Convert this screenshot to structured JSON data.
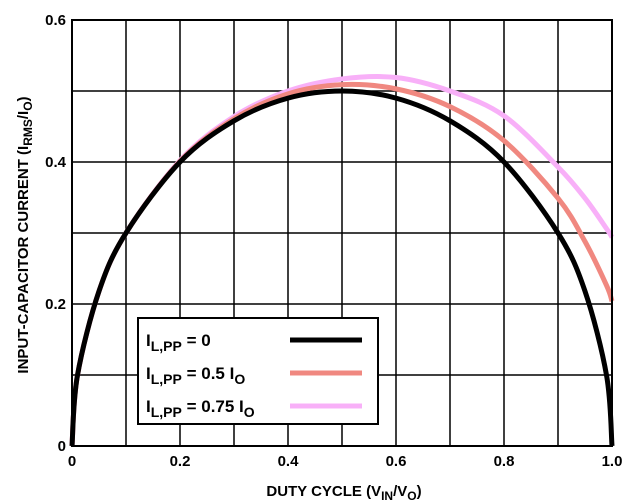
{
  "chart_data": {
    "type": "line",
    "xlabel": {
      "main": "DUTY CYCLE (V",
      "sub1": "IN",
      "mid": "/V",
      "sub2": "O",
      "end": ")"
    },
    "ylabel": {
      "main": "INPUT-CAPACITOR CURRENT (I",
      "sub1": "RMS",
      "mid": "/I",
      "sub2": "O",
      "end": ")"
    },
    "xlim": [
      0,
      1.0
    ],
    "ylim": [
      0,
      0.6
    ],
    "grid": true,
    "x_ticks": [
      "0",
      "0.2",
      "0.4",
      "0.6",
      "0.8",
      "1.0"
    ],
    "x_tick_values": [
      0,
      0.2,
      0.4,
      0.6,
      0.8,
      1.0
    ],
    "y_ticks": [
      "0",
      "0.2",
      "0.4",
      "0.6"
    ],
    "y_tick_values": [
      0,
      0.2,
      0.4,
      0.6
    ],
    "legend_position": "lower-left",
    "x": [
      0,
      0.01,
      0.05,
      0.1,
      0.2,
      0.3,
      0.4,
      0.5,
      0.6,
      0.7,
      0.8,
      0.9,
      0.95,
      0.99,
      1.0
    ],
    "series": [
      {
        "label": {
          "pre": "I",
          "sub": "L,PP",
          "post": " = 0",
          "sub2": ""
        },
        "color": "#000000",
        "values": [
          0,
          0.099,
          0.218,
          0.3,
          0.4,
          0.458,
          0.49,
          0.5,
          0.49,
          0.458,
          0.4,
          0.3,
          0.218,
          0.099,
          0
        ]
      },
      {
        "label": {
          "pre": "I",
          "sub": "L,PP",
          "post": " = 0.5 I",
          "sub2": "O"
        },
        "color": "#f08880",
        "values": [
          0,
          0.099,
          0.218,
          0.3,
          0.401,
          0.461,
          0.496,
          0.509,
          0.503,
          0.478,
          0.43,
          0.349,
          0.288,
          0.226,
          0.204
        ]
      },
      {
        "label": {
          "pre": "I",
          "sub": "L,PP",
          "post": " = 0.75 I",
          "sub2": "O"
        },
        "color": "#f8b0f8",
        "values": [
          0,
          0.099,
          0.218,
          0.3,
          0.402,
          0.464,
          0.5,
          0.517,
          0.519,
          0.5,
          0.465,
          0.393,
          0.349,
          0.306,
          0.294
        ]
      }
    ]
  }
}
